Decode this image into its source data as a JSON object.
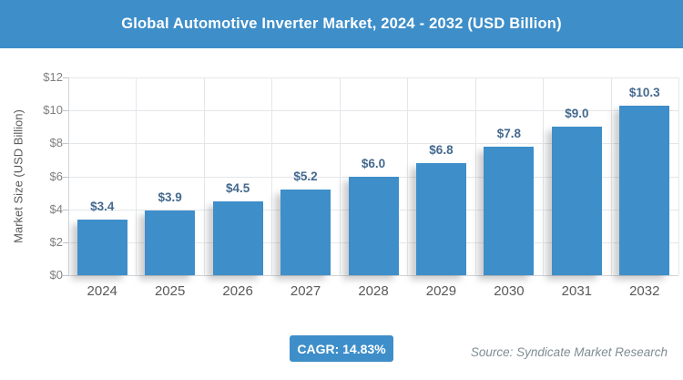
{
  "header": {
    "title": "Global Automotive Inverter Market, 2024 - 2032 (USD Billion)"
  },
  "colors": {
    "accent_blue": "#3e8ec9",
    "bar_blue": "#3e8ec9",
    "data_label_blue": "#44698f",
    "grid_gray": "#e4e7ea",
    "axis_text_gray": "#595959"
  },
  "chart_data": {
    "type": "bar",
    "title": "Global Automotive Inverter Market, 2024 - 2032 (USD Billion)",
    "categories": [
      "2024",
      "2025",
      "2026",
      "2027",
      "2028",
      "2029",
      "2030",
      "2031",
      "2032"
    ],
    "values": [
      3.4,
      3.9,
      4.5,
      5.2,
      6.0,
      6.8,
      7.8,
      9.0,
      10.3
    ],
    "value_labels": [
      "$3.4",
      "$3.9",
      "$4.5",
      "$5.2",
      "$6.0",
      "$6.8",
      "$7.8",
      "$9.0",
      "$10.3"
    ],
    "xlabel": "",
    "ylabel": "Market Size (USD Billion)",
    "ylim": [
      0,
      12
    ],
    "ytick_step": 2,
    "ytick_labels": [
      "$0",
      "$2",
      "$4",
      "$6",
      "$8",
      "$10",
      "$12"
    ],
    "grid": "on",
    "legend": "none",
    "bar_color": "#3e8ec9"
  },
  "footer": {
    "cagr_label": "CAGR: 14.83%",
    "source": "Source: Syndicate Market Research"
  }
}
